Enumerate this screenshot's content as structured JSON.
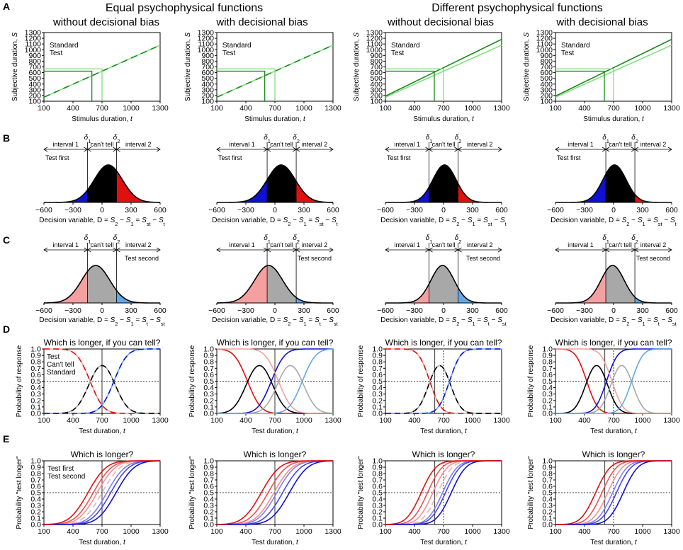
{
  "headers": {
    "left_group": "Equal psychophysical functions",
    "right_group": "Different psychophysical functions",
    "col_titles": [
      "without decisional bias",
      "with decisional bias",
      "without decisional bias",
      "with decisional bias"
    ]
  },
  "panel_letters": [
    "A",
    "B",
    "C",
    "D",
    "E"
  ],
  "colors": {
    "standard_light_green": "#80e080",
    "test_dark_green": "#1a8a1a",
    "blue": "#1010d0",
    "red": "#e01010",
    "light_red": "#f4a0a0",
    "light_blue": "#60a8e8",
    "gray": "#a8a8a8"
  },
  "chart_data": [
    {
      "row": "A",
      "type": "line",
      "title": "",
      "xlabel": "Stimulus duration, t",
      "ylabel": "Subjective duration, S",
      "xlim": [
        100,
        1300
      ],
      "ylim": [
        100,
        1300
      ],
      "xticks": [
        100,
        400,
        700,
        1000,
        1300
      ],
      "yticks": [
        100,
        200,
        300,
        400,
        500,
        600,
        700,
        800,
        900,
        1000,
        1100,
        1200,
        1300
      ],
      "legend": [
        "Standard",
        "Test"
      ],
      "standard_duration": 700,
      "panels": [
        {
          "test_gain": 1.0,
          "pse": 595,
          "S_standard": 665,
          "curves_equal": true
        },
        {
          "test_gain": 1.0,
          "pse": 595,
          "S_standard": 665,
          "curves_equal": true
        },
        {
          "test_gain": 1.09,
          "pse": 605,
          "S_standard": 665,
          "curves_equal": false
        },
        {
          "test_gain": 1.09,
          "pse": 605,
          "S_standard": 665,
          "curves_equal": false
        }
      ]
    },
    {
      "row": "B",
      "type": "area",
      "xlabel": "Decision variable, D = S2 − S1 = Sst − St",
      "xlim": [
        -600,
        600
      ],
      "xticks": [
        -600,
        -300,
        0,
        300,
        600
      ],
      "regions": [
        "interval 1",
        "can't tell",
        "interval 2"
      ],
      "annotation": "Test first",
      "thresholds": [
        "δ1",
        "δ2"
      ],
      "panels": [
        {
          "mean": 65,
          "sd": 145,
          "delta1": -150,
          "delta2": 150,
          "left_fill": "blue",
          "right_fill": "red"
        },
        {
          "mean": 65,
          "sd": 145,
          "delta1": -80,
          "delta2": 220,
          "left_fill": "blue",
          "right_fill": "red"
        },
        {
          "mean": 10,
          "sd": 120,
          "delta1": -150,
          "delta2": 150,
          "left_fill": "blue",
          "right_fill": "red"
        },
        {
          "mean": 10,
          "sd": 120,
          "delta1": -80,
          "delta2": 220,
          "left_fill": "blue",
          "right_fill": "red"
        }
      ]
    },
    {
      "row": "C",
      "type": "area",
      "xlabel": "Decision variable, D = S2 − S1 = St − Sst",
      "xlim": [
        -600,
        600
      ],
      "xticks": [
        -600,
        -300,
        0,
        300,
        600
      ],
      "regions": [
        "interval 1",
        "can't tell",
        "interval 2"
      ],
      "annotation": "Test second",
      "thresholds": [
        "δ1",
        "δ2"
      ],
      "panels": [
        {
          "mean": -65,
          "sd": 145,
          "delta1": -150,
          "delta2": 150,
          "left_fill": "light_red",
          "right_fill": "light_blue"
        },
        {
          "mean": -65,
          "sd": 145,
          "delta1": -80,
          "delta2": 220,
          "left_fill": "light_red",
          "right_fill": "light_blue"
        },
        {
          "mean": -10,
          "sd": 120,
          "delta1": -150,
          "delta2": 150,
          "left_fill": "light_red",
          "right_fill": "light_blue"
        },
        {
          "mean": -10,
          "sd": 120,
          "delta1": -80,
          "delta2": 220,
          "left_fill": "light_red",
          "right_fill": "light_blue"
        }
      ]
    },
    {
      "row": "D",
      "type": "line",
      "title": "Which is longer, if you can tell?",
      "xlabel": "Test duration, t",
      "ylabel": "Probability of response",
      "xlim": [
        100,
        1300
      ],
      "ylim": [
        0,
        1
      ],
      "xticks": [
        100,
        400,
        700,
        1000,
        1300
      ],
      "yticks": [
        0.0,
        0.1,
        0.2,
        0.3,
        0.4,
        0.5,
        0.6,
        0.7,
        0.8,
        0.9,
        1.0
      ],
      "legend": [
        "Test",
        "Can't tell",
        "Standard"
      ],
      "reference_line_y": 0.5,
      "standard_duration": 700,
      "panels": [
        {
          "curve_sets": [
            {
              "shift": 0,
              "sd": 145,
              "style": "dashed-dark"
            }
          ],
          "pse": 700
        },
        {
          "curve_sets": [
            {
              "shift": -160,
              "sd": 145,
              "style": "dark"
            },
            {
              "shift": 160,
              "sd": 145,
              "style": "light"
            }
          ],
          "pse": 700
        },
        {
          "curve_sets": [
            {
              "shift": -40,
              "sd": 120,
              "style": "dashed-dark"
            }
          ],
          "pse": 610
        },
        {
          "curve_sets": [
            {
              "shift": -175,
              "sd": 120,
              "style": "dark"
            },
            {
              "shift": 85,
              "sd": 120,
              "style": "light"
            }
          ],
          "pse": 610
        }
      ]
    },
    {
      "row": "E",
      "type": "line",
      "title": "Which is longer?",
      "xlabel": "Test duration, t",
      "ylabel": "Probability \"test longer\"",
      "xlim": [
        100,
        1300
      ],
      "ylim": [
        0,
        1
      ],
      "xticks": [
        100,
        400,
        700,
        1000,
        1300
      ],
      "yticks": [
        0.0,
        0.1,
        0.2,
        0.3,
        0.4,
        0.5,
        0.6,
        0.7,
        0.8,
        0.9,
        1.0
      ],
      "legend": [
        "Test first",
        "Test second"
      ],
      "reference_line_y": 0.5,
      "standard_duration": 700,
      "panels": [
        {
          "red_centers": [
            555,
            610,
            650,
            700
          ],
          "blue_centers": [
            845,
            790,
            750,
            700
          ],
          "sd": 150,
          "pse": 700
        },
        {
          "red_centers": [
            560,
            630,
            690
          ],
          "blue_centers": [
            850,
            780,
            720
          ],
          "sd": 150,
          "pse": 700
        },
        {
          "red_centers": [
            470,
            535,
            590,
            640
          ],
          "blue_centers": [
            780,
            720,
            690,
            640
          ],
          "sd": 120,
          "pse": 610
        },
        {
          "red_centers": [
            515,
            580,
            640
          ],
          "blue_centers": [
            800,
            730,
            690
          ],
          "sd": 120,
          "pse": 610
        }
      ]
    }
  ]
}
